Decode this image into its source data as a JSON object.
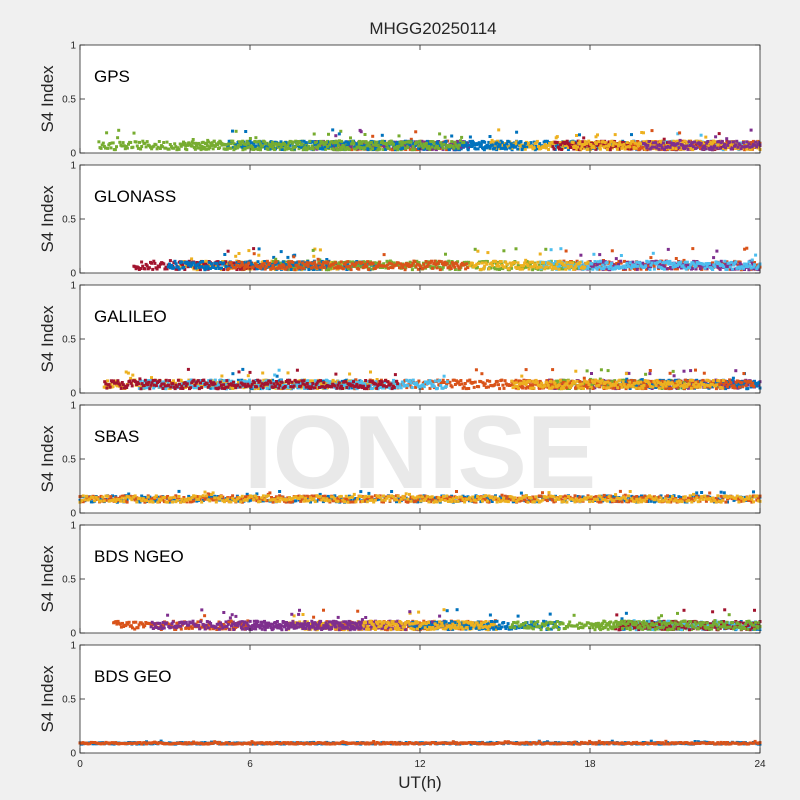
{
  "figure": {
    "title": "MHGG20250114",
    "watermark": "IONISE",
    "xlabel": "UT(h)",
    "ylabel": "S4 Index"
  },
  "colors": {
    "series": [
      "#0072BD",
      "#D95319",
      "#EDB120",
      "#7E2F8E",
      "#77AC30",
      "#4DBEEE",
      "#A2142F"
    ],
    "background": "#f0f0f0",
    "axes": "#ffffff"
  },
  "chart_data": [
    {
      "type": "scatter",
      "panel_label": "GPS",
      "ylabel": "S4 Index",
      "xlim": [
        0,
        24
      ],
      "ylim": [
        0,
        1
      ],
      "xticks": [
        0,
        6,
        12,
        18,
        24
      ],
      "yticks": [
        0,
        0.5,
        1
      ],
      "series_count": 12,
      "baseline": 0.07,
      "spread": 0.04,
      "spike_max": 0.22,
      "grid": false
    },
    {
      "type": "scatter",
      "panel_label": "GLONASS",
      "ylabel": "S4 Index",
      "xlim": [
        0,
        24
      ],
      "ylim": [
        0,
        1
      ],
      "xticks": [
        0,
        6,
        12,
        18,
        24
      ],
      "yticks": [
        0,
        0.5,
        1
      ],
      "series_count": 10,
      "baseline": 0.07,
      "spread": 0.04,
      "spike_max": 0.23,
      "grid": false
    },
    {
      "type": "scatter",
      "panel_label": "GALILEO",
      "ylabel": "S4 Index",
      "xlim": [
        0,
        24
      ],
      "ylim": [
        0,
        1
      ],
      "xticks": [
        0,
        6,
        12,
        18,
        24
      ],
      "yticks": [
        0,
        0.5,
        1
      ],
      "series_count": 10,
      "baseline": 0.08,
      "spread": 0.04,
      "spike_max": 0.22,
      "grid": false
    },
    {
      "type": "scatter",
      "panel_label": "SBAS",
      "ylabel": "S4 Index",
      "xlim": [
        0,
        24
      ],
      "ylim": [
        0,
        1
      ],
      "xticks": [
        0,
        6,
        12,
        18,
        24
      ],
      "yticks": [
        0,
        0.5,
        1
      ],
      "series_count": 3,
      "baseline": 0.13,
      "spread": 0.03,
      "spike_max": 0.2,
      "grid": false
    },
    {
      "type": "scatter",
      "panel_label": "BDS NGEO",
      "ylabel": "S4 Index",
      "xlim": [
        0,
        24
      ],
      "ylim": [
        0,
        1
      ],
      "xticks": [
        0,
        6,
        12,
        18,
        24
      ],
      "yticks": [
        0,
        0.5,
        1
      ],
      "series_count": 12,
      "baseline": 0.07,
      "spread": 0.04,
      "spike_max": 0.22,
      "grid": false
    },
    {
      "type": "scatter",
      "panel_label": "BDS GEO",
      "ylabel": "S4 Index",
      "xlim": [
        0,
        24
      ],
      "ylim": [
        0,
        1
      ],
      "xticks": [
        0,
        6,
        12,
        18,
        24
      ],
      "yticks": [
        0,
        0.5,
        1
      ],
      "series_count": 2,
      "baseline": 0.09,
      "spread": 0.008,
      "spike_max": 0.11,
      "grid": false
    }
  ]
}
